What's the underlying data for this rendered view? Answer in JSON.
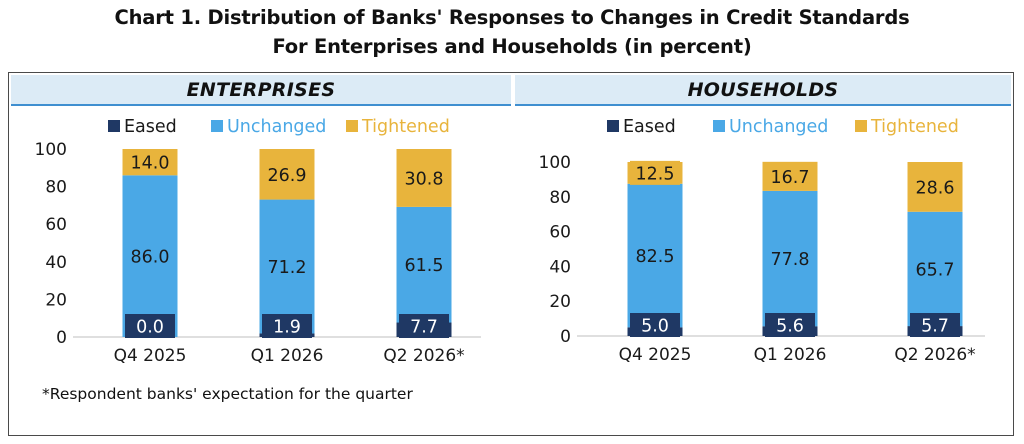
{
  "title_line1": "Chart 1. Distribution of Banks' Responses to Changes in Credit Standards",
  "title_line2": "For Enterprises and Households (in percent)",
  "footnote": "*Respondent banks' expectation for the quarter",
  "colors": {
    "eased": "#1f3864",
    "unchanged": "#4aa8e6",
    "tightened": "#e8b43c",
    "header_bg": "#dcebf6",
    "header_rule": "#3f8fd0"
  },
  "chart_data": [
    {
      "type": "bar",
      "stacked": true,
      "title": "ENTERPRISES",
      "categories": [
        "Q4 2025",
        "Q1 2026",
        "Q2 2026*"
      ],
      "series": [
        {
          "name": "Eased",
          "values": [
            0.0,
            1.9,
            7.7
          ]
        },
        {
          "name": "Unchanged",
          "values": [
            86.0,
            71.2,
            61.5
          ]
        },
        {
          "name": "Tightened",
          "values": [
            14.0,
            26.9,
            30.8
          ]
        }
      ],
      "labels": [
        [
          "0.0",
          "1.9",
          "7.7"
        ],
        [
          "86.0",
          "71.2",
          "61.5"
        ],
        [
          "14.0",
          "26.9",
          "30.8"
        ]
      ],
      "ylim": [
        0,
        100
      ],
      "yticks": [
        "0",
        "20",
        "40",
        "60",
        "80",
        "100"
      ],
      "legend": "top",
      "grid": false
    },
    {
      "type": "bar",
      "stacked": true,
      "title": "HOUSEHOLDS",
      "categories": [
        "Q4 2025",
        "Q1 2026",
        "Q2 2026*"
      ],
      "series": [
        {
          "name": "Eased",
          "values": [
            5.0,
            5.6,
            5.7
          ]
        },
        {
          "name": "Unchanged",
          "values": [
            82.5,
            77.8,
            65.7
          ]
        },
        {
          "name": "Tightened",
          "values": [
            12.5,
            16.7,
            28.6
          ]
        }
      ],
      "labels": [
        [
          "5.0",
          "5.6",
          "5.7"
        ],
        [
          "82.5",
          "77.8",
          "65.7"
        ],
        [
          "12.5",
          "16.7",
          "28.6"
        ]
      ],
      "ylim": [
        0,
        100
      ],
      "yticks": [
        "0",
        "20",
        "40",
        "60",
        "80",
        "100"
      ],
      "legend": "top",
      "grid": false
    }
  ]
}
